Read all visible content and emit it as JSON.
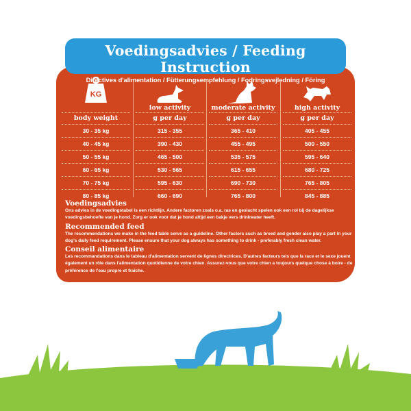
{
  "banner": {
    "title": "Voedingsadvies / Feeding Instruction",
    "subtitle": "Directives d'alimentation / Fütterungsempfehlung / Fodringsvejledning / Föring"
  },
  "colors": {
    "panel": "#d2461f",
    "banner": "#2a9bd8",
    "grass": "#8cc63f",
    "dog": "#3aa0d8"
  },
  "table": {
    "columns": [
      {
        "icon": "weight-kg-icon",
        "icon_text": "KG",
        "header": "",
        "sub": "body weight",
        "cells": [
          "30 - 35 kg",
          "40 - 45 kg",
          "50 - 55 kg",
          "60 - 65 kg",
          "70 - 75 kg",
          "80 - 85 kg"
        ]
      },
      {
        "icon": "lying-dog-icon",
        "header": "low activity",
        "sub": "g per day",
        "cells": [
          "315 - 355",
          "390 - 430",
          "465 - 500",
          "530 - 565",
          "595 - 630",
          "660 - 690"
        ]
      },
      {
        "icon": "sitting-dog-icon",
        "header": "moderate activity",
        "sub": "g per day",
        "cells": [
          "365 - 410",
          "455 - 495",
          "535 - 575",
          "615 - 655",
          "690 - 730",
          "765 - 800"
        ]
      },
      {
        "icon": "running-dog-icon",
        "header": "high activity",
        "sub": "g per day",
        "cells": [
          "405 - 455",
          "500 - 550",
          "595 - 640",
          "680 - 725",
          "765 - 805",
          "845 - 885"
        ]
      }
    ]
  },
  "advice": [
    {
      "title": "Voedingsadvies",
      "text": "Ons advies in de voedingstabel is een richtlijn. Andere factoren zoals o.a. ras en geslacht spelen ook een rol bij de dagelijkse voedingsbehoefte van je hond. Zorg er ook voor dat je hond altijd een bakje vers drinkwater heeft."
    },
    {
      "title": "Recommended feed",
      "text": "The recommendations we make in the feed table serve as a guideline. Other factors such as breed and gender also play a part in your dog's daily feed requirement. Please ensure that your dog always has something to drink - preferably fresh clean water."
    },
    {
      "title": "Conseil alimentaire",
      "text": "Les recommandations dans le tableau d'alimentation servent de lignes directrices. D'autres facteurs tels que la race et le sexe jouent également un rôle dans l'alimentation quotidienne de votre chien. Assurez-vous que votre chien a toujours quelque chose à boire - de préférence de l'eau propre et fraîche."
    }
  ]
}
